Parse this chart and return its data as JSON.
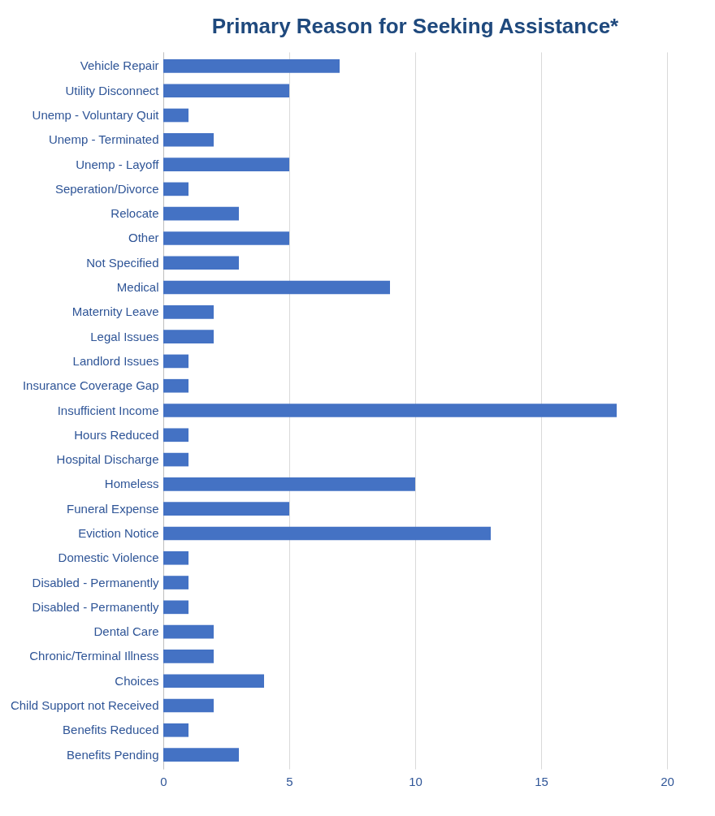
{
  "chart_data": {
    "type": "bar",
    "orientation": "horizontal",
    "title": "Primary Reason for Seeking Assistance*",
    "categories": [
      "Vehicle Repair",
      "Utility Disconnect",
      "Unemp - Voluntary Quit",
      "Unemp - Terminated",
      "Unemp - Layoff",
      "Seperation/Divorce",
      "Relocate",
      "Other",
      "Not Specified",
      "Medical",
      "Maternity Leave",
      "Legal Issues",
      "Landlord Issues",
      "Insurance Coverage Gap",
      "Insufficient Income",
      "Hours Reduced",
      "Hospital Discharge",
      "Homeless",
      "Funeral Expense",
      "Eviction Notice",
      "Domestic Violence",
      "Disabled - Permanently",
      "Disabled - Permanently",
      "Dental Care",
      "Chronic/Terminal Illness",
      "Choices",
      "Child Support not Received",
      "Benefits Reduced",
      "Benefits Pending"
    ],
    "values": [
      7,
      5,
      1,
      2,
      5,
      1,
      3,
      5,
      3,
      9,
      2,
      2,
      1,
      1,
      18,
      1,
      1,
      10,
      5,
      13,
      1,
      1,
      1,
      2,
      2,
      4,
      2,
      1,
      3
    ],
    "color": "#4472c4",
    "xlim": [
      0,
      20
    ],
    "xticks": [
      0,
      5,
      10,
      15,
      20
    ],
    "grid": "x"
  }
}
